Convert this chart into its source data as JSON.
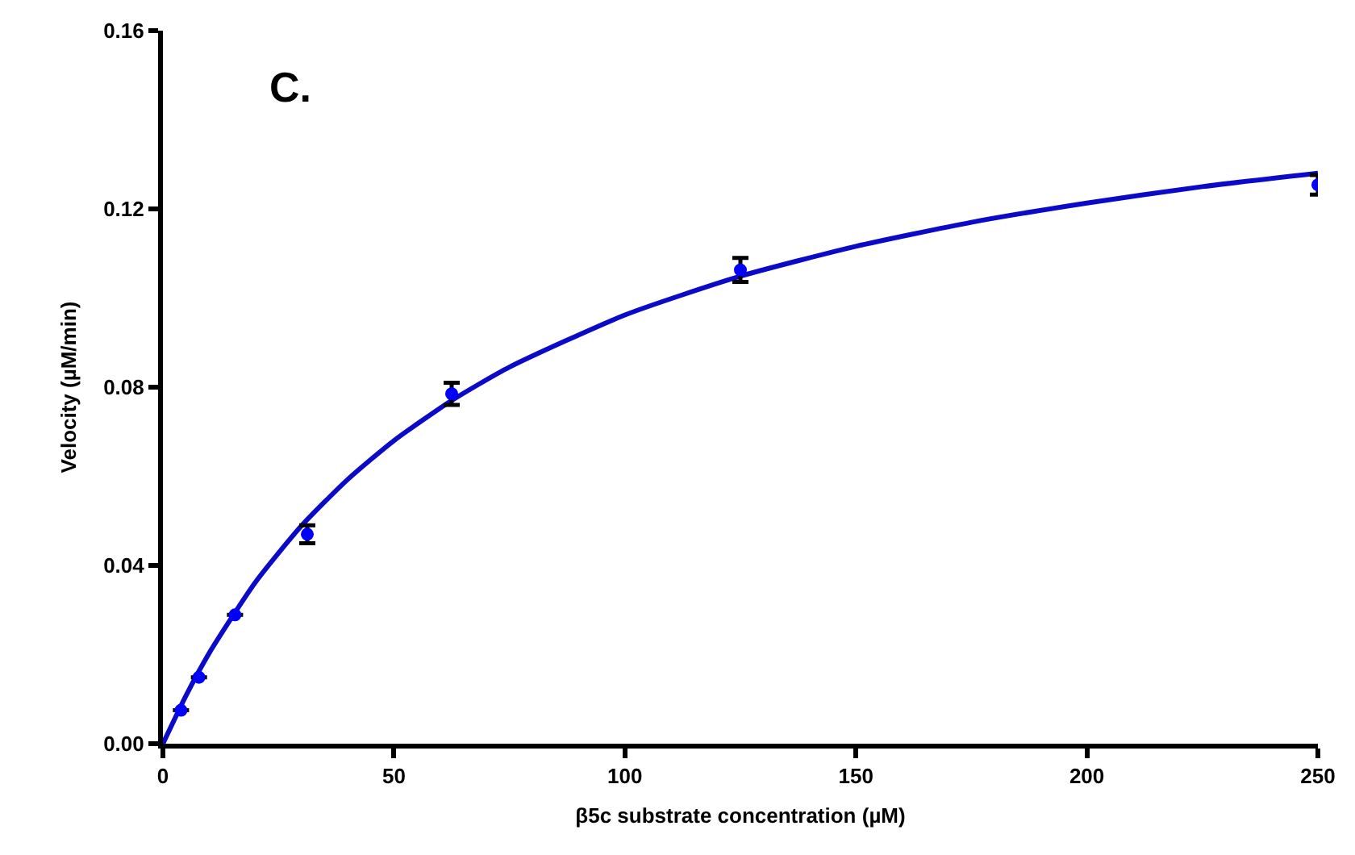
{
  "chart_data": {
    "type": "scatter",
    "xlabel": "β5c substrate concentration (µM)",
    "ylabel": "Velocity (µM/min)",
    "annotations": [
      "C."
    ],
    "xlim": [
      0,
      250
    ],
    "xticks": [
      0,
      50,
      100,
      150,
      200,
      250
    ],
    "ylim": [
      0,
      0.16
    ],
    "yticks": [
      {
        "value": 0,
        "label": "0.00"
      },
      {
        "value": 0.04,
        "label": "0.04"
      },
      {
        "value": 0.08,
        "label": "0.08"
      },
      {
        "value": 0.12,
        "label": "0.12"
      },
      {
        "value": 0.16,
        "label": "0.16"
      }
    ],
    "marker": "circle",
    "series": [
      {
        "type": "line",
        "color": "#0a0ac8",
        "marker": "none",
        "line_style": "solid",
        "x": [
          0,
          5,
          10,
          20,
          30,
          40,
          50,
          62.5,
          75,
          100,
          125,
          150,
          175,
          200,
          225,
          250
        ],
        "values": [
          0,
          0.0108,
          0.0203,
          0.0362,
          0.0489,
          0.0593,
          0.068,
          0.077,
          0.0845,
          0.0962,
          0.1049,
          0.1116,
          0.117,
          0.1213,
          0.125,
          0.128
        ]
      },
      {
        "color": "#0000ff",
        "x": [
          3.9,
          7.8,
          15.6,
          31.25,
          62.5,
          125,
          250
        ],
        "values": [
          0.0075,
          0.0149,
          0.0289,
          0.047,
          0.0785,
          0.1063,
          0.1254
        ],
        "errors": [
          null,
          null,
          null,
          0.002,
          0.0025,
          0.0027,
          0.0022
        ]
      }
    ]
  }
}
